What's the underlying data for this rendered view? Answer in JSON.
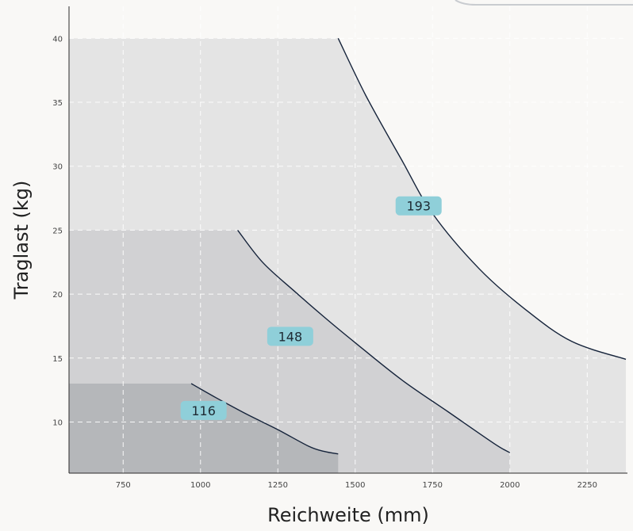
{
  "chart_data": {
    "type": "area",
    "title": "",
    "xlabel": "Reichweite (mm)",
    "ylabel": "Traglast (kg)",
    "xlim": [
      575,
      2380
    ],
    "ylim": [
      6,
      42.5
    ],
    "x_ticks": [
      750,
      1000,
      1250,
      1500,
      1750,
      2000,
      2250
    ],
    "y_ticks": [
      10,
      15,
      20,
      25,
      30,
      35,
      40
    ],
    "grid": true,
    "series": [
      {
        "name": "193",
        "fill": "#e4e4e4",
        "flat": [
          [
            575,
            40
          ],
          [
            1445,
            40
          ]
        ],
        "curve": [
          [
            1445,
            40
          ],
          [
            1535,
            35.5
          ],
          [
            1650,
            30.5
          ],
          [
            1750,
            26.3
          ],
          [
            1900,
            22
          ],
          [
            2050,
            18.8
          ],
          [
            2200,
            16.3
          ],
          [
            2375,
            14.9
          ]
        ],
        "drop_to": 6,
        "label_at": [
          1705,
          26.9
        ]
      },
      {
        "name": "148",
        "fill": "#d1d1d3",
        "flat": [
          [
            575,
            25
          ],
          [
            1120,
            25
          ]
        ],
        "curve": [
          [
            1120,
            25
          ],
          [
            1200,
            22.5
          ],
          [
            1300,
            20.3
          ],
          [
            1400,
            18.2
          ],
          [
            1500,
            16.2
          ],
          [
            1650,
            13.3
          ],
          [
            1800,
            10.8
          ],
          [
            1950,
            8.3
          ],
          [
            2000,
            7.6
          ]
        ],
        "drop_to": 6,
        "label_at": [
          1290,
          16.7
        ]
      },
      {
        "name": "116",
        "fill": "#b5b7ba",
        "flat": [
          [
            575,
            13
          ],
          [
            970,
            13
          ]
        ],
        "curve": [
          [
            970,
            13
          ],
          [
            1050,
            11.9
          ],
          [
            1150,
            10.6
          ],
          [
            1250,
            9.4
          ],
          [
            1350,
            8.1
          ],
          [
            1400,
            7.7
          ],
          [
            1445,
            7.5
          ]
        ],
        "drop_to": 6,
        "label_at": [
          1010,
          10.9
        ]
      }
    ],
    "label_color": "#8fcfd9",
    "curve_color": "#15233a",
    "grid_color": "#ffffff"
  }
}
